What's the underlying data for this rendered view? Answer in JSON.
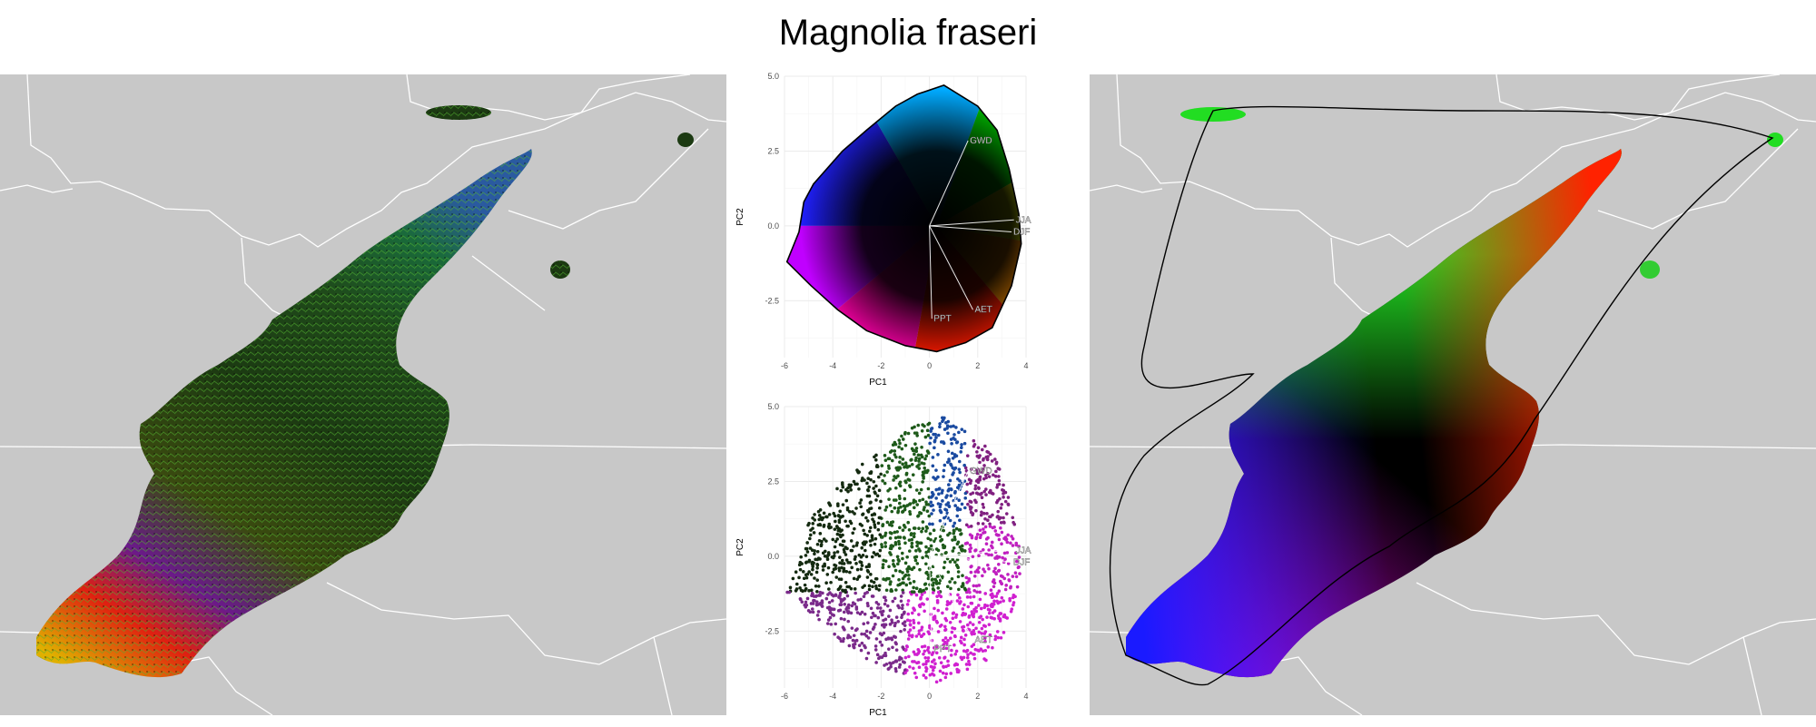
{
  "figure": {
    "title": "Magnolia fraseri"
  },
  "chart_data": [
    {
      "type": "scatter",
      "name_ref": "pca-biplot-colored-space",
      "xlabel": "PC1",
      "ylabel": "PC2",
      "xlim": [
        -6,
        4
      ],
      "ylim": [
        -4.4,
        5.0
      ],
      "x_ticks": [
        "-6",
        "-4",
        "-2",
        "0",
        "2",
        "4"
      ],
      "y_ticks": [
        "-2.5",
        "0.0",
        "2.5",
        "5.0"
      ],
      "x_tick_values": [
        -6,
        -4,
        -2,
        0,
        2,
        4
      ],
      "y_tick_values": [
        -2.5,
        0.0,
        2.5,
        5.0
      ],
      "grid": true,
      "loadings": [
        {
          "label": "GWD",
          "x": 1.6,
          "y": 2.85
        },
        {
          "label": "JJA",
          "x": 3.5,
          "y": 0.2
        },
        {
          "label": "DJF",
          "x": 3.4,
          "y": -0.2
        },
        {
          "label": "AET",
          "x": 1.8,
          "y": -2.8
        },
        {
          "label": "PPT",
          "x": 0.1,
          "y": -3.1
        }
      ],
      "hull": [
        [
          -5.9,
          -1.2
        ],
        [
          -5.4,
          -0.2
        ],
        [
          -5.2,
          0.8
        ],
        [
          -4.8,
          1.4
        ],
        [
          -3.6,
          2.5
        ],
        [
          -2.6,
          3.2
        ],
        [
          -1.4,
          4.0
        ],
        [
          -0.5,
          4.4
        ],
        [
          0.6,
          4.7
        ],
        [
          1.2,
          4.4
        ],
        [
          2.0,
          4.0
        ],
        [
          2.8,
          3.2
        ],
        [
          3.3,
          1.9
        ],
        [
          3.7,
          0.4
        ],
        [
          3.8,
          -0.6
        ],
        [
          3.4,
          -2.0
        ],
        [
          2.6,
          -3.4
        ],
        [
          1.5,
          -3.9
        ],
        [
          0.3,
          -4.2
        ],
        [
          -1.0,
          -4.0
        ],
        [
          -2.6,
          -3.5
        ],
        [
          -3.8,
          -2.8
        ],
        [
          -4.9,
          -2.0
        ]
      ]
    },
    {
      "type": "scatter",
      "name_ref": "pca-biplot-sampled-points",
      "xlabel": "PC1",
      "ylabel": "PC2",
      "xlim": [
        -6,
        4
      ],
      "ylim": [
        -4.4,
        5.0
      ],
      "x_ticks": [
        "-6",
        "-4",
        "-2",
        "0",
        "2",
        "4"
      ],
      "y_ticks": [
        "-2.5",
        "0.0",
        "2.5",
        "5.0"
      ],
      "x_tick_values": [
        -6,
        -4,
        -2,
        0,
        2,
        4
      ],
      "y_tick_values": [
        -2.5,
        0.0,
        2.5,
        5.0
      ],
      "grid": true,
      "loadings": [
        {
          "label": "GWD",
          "x": 1.6,
          "y": 2.85
        },
        {
          "label": "JJA",
          "x": 3.5,
          "y": 0.2
        },
        {
          "label": "DJF",
          "x": 3.4,
          "y": -0.2
        },
        {
          "label": "AET",
          "x": 1.8,
          "y": -2.8
        },
        {
          "label": "PPT",
          "x": 0.1,
          "y": -3.1
        }
      ]
    }
  ],
  "colors": {
    "map_background": "#c8c8c8",
    "border_line": "#ffffff",
    "hull_line": "#000000",
    "grid": "#ebebeb",
    "axis_text": "#4d4d4d"
  }
}
